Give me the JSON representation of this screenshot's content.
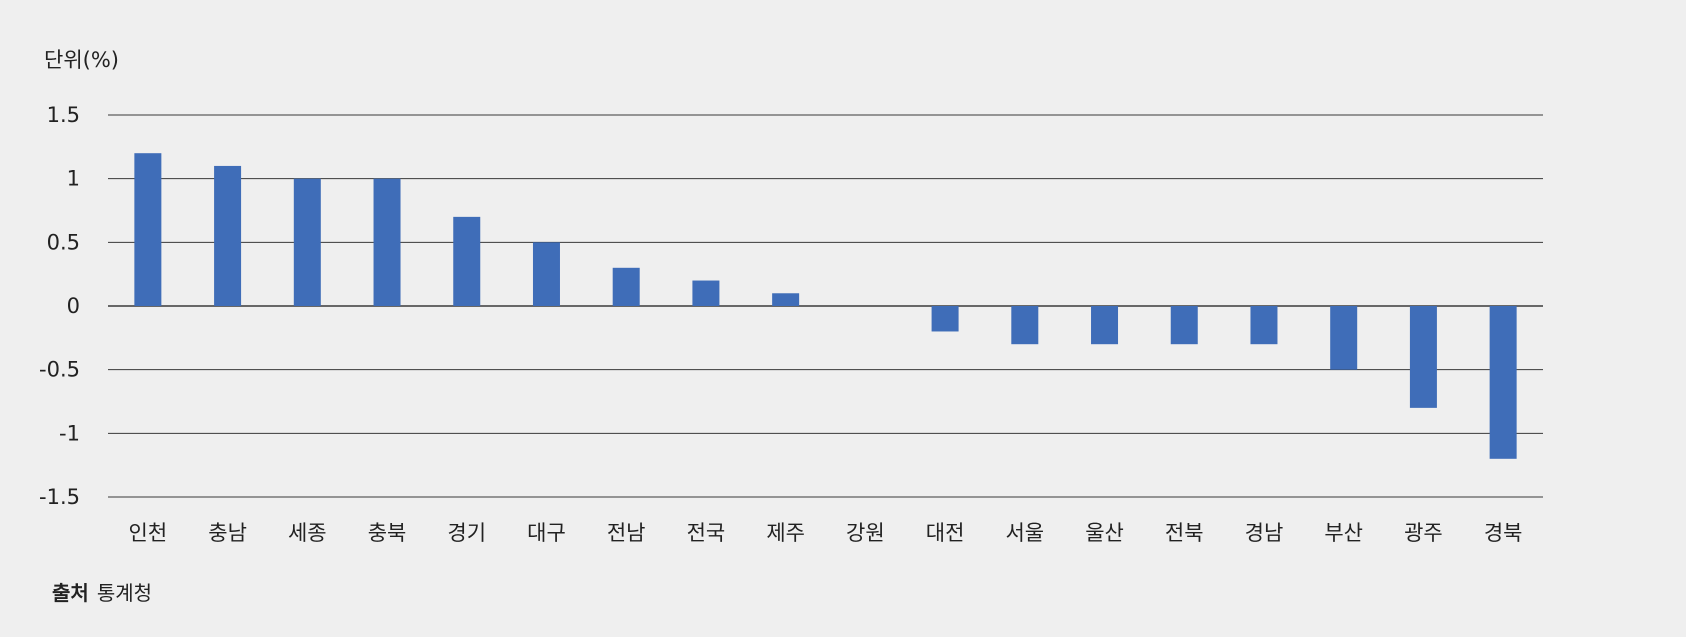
{
  "unit_label": "단위(%)",
  "source": {
    "label": "출처",
    "text": "통계청"
  },
  "colors": {
    "bar": "#3f6db8",
    "grid": "#3a3a3a",
    "background": "#efefef"
  },
  "chart_data": {
    "type": "bar",
    "categories": [
      "인천",
      "충남",
      "세종",
      "충북",
      "경기",
      "대구",
      "전남",
      "전국",
      "제주",
      "강원",
      "대전",
      "서울",
      "울산",
      "전북",
      "경남",
      "부산",
      "광주",
      "경북"
    ],
    "values": [
      1.2,
      1.1,
      1.0,
      1.0,
      0.7,
      0.5,
      0.3,
      0.2,
      0.1,
      0,
      -0.2,
      -0.3,
      -0.3,
      -0.3,
      -0.3,
      -0.5,
      -0.8,
      -1.2
    ],
    "yticks": [
      "1.5",
      "1",
      "0.5",
      "0",
      "-0.5",
      "-1",
      "-1.5"
    ],
    "ylim": [
      -1.5,
      1.5
    ],
    "grid": true
  }
}
